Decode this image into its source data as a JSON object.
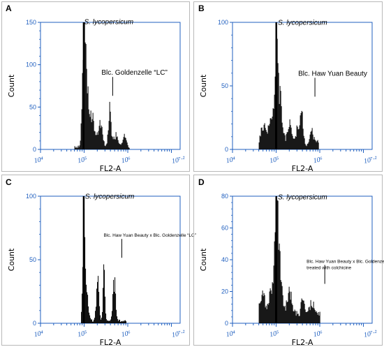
{
  "chart_data": [
    {
      "panel": "A",
      "type": "bar",
      "xscale": "log",
      "xlabel": "FL2-A",
      "ylabel": "Count",
      "xlim": [
        10000,
        15848931
      ],
      "ylim": [
        0,
        150
      ],
      "yticks": [
        "0",
        "50",
        "100",
        "150"
      ],
      "xticks": [
        {
          "v": 10000,
          "label": "10⁴"
        },
        {
          "v": 100000,
          "label": "10⁵"
        },
        {
          "v": 1000000,
          "label": "10⁶"
        },
        {
          "v": 15848931,
          "label": "10⁷·²"
        }
      ],
      "annotations": [
        {
          "text": "S. lycopersicum",
          "italic": true,
          "x": 100000,
          "y": 148,
          "size": 10
        },
        {
          "text": "Blc. Goldenzelle “LC”",
          "italic": false,
          "x": 250000,
          "y": 88,
          "size": 10
        }
      ],
      "peaks": [
        {
          "x": 97000,
          "h": 150,
          "w": 0.035
        },
        {
          "x": 112000,
          "h": 75,
          "w": 0.05
        },
        {
          "x": 150000,
          "h": 42,
          "w": 0.06
        },
        {
          "x": 230000,
          "h": 35,
          "w": 0.05
        },
        {
          "x": 380000,
          "h": 60,
          "w": 0.03
        },
        {
          "x": 520000,
          "h": 18,
          "w": 0.05
        },
        {
          "x": 820000,
          "h": 16,
          "w": 0.04
        }
      ],
      "xrange": [
        60000,
        1100000
      ],
      "floor": 3
    },
    {
      "panel": "B",
      "type": "bar",
      "xscale": "log",
      "xlabel": "FL2-A",
      "ylabel": "Count",
      "xlim": [
        10000,
        15848931
      ],
      "ylim": [
        0,
        100
      ],
      "yticks": [
        "0",
        "50",
        "100"
      ],
      "xticks": [
        {
          "v": 10000,
          "label": "10⁴"
        },
        {
          "v": 100000,
          "label": "10⁵"
        },
        {
          "v": 1000000,
          "label": "10⁶"
        },
        {
          "v": 15848931,
          "label": "10⁷·²"
        }
      ],
      "annotations": [
        {
          "text": "S. lycopersicum",
          "italic": true,
          "x": 110000,
          "y": 98,
          "size": 10
        },
        {
          "text": "Blc. Haw Yuan Beauty",
          "italic": false,
          "x": 320000,
          "y": 58,
          "size": 10
        }
      ],
      "peaks": [
        {
          "x": 50000,
          "h": 20,
          "w": 0.06
        },
        {
          "x": 78000,
          "h": 28,
          "w": 0.06
        },
        {
          "x": 100000,
          "h": 100,
          "w": 0.035
        },
        {
          "x": 120000,
          "h": 45,
          "w": 0.05
        },
        {
          "x": 200000,
          "h": 22,
          "w": 0.05
        },
        {
          "x": 310000,
          "h": 20,
          "w": 0.04
        },
        {
          "x": 380000,
          "h": 30,
          "w": 0.03
        },
        {
          "x": 640000,
          "h": 14,
          "w": 0.04
        },
        {
          "x": 820000,
          "h": 4,
          "w": 0.04
        }
      ],
      "xrange": [
        40000,
        950000
      ],
      "floor": 4
    },
    {
      "panel": "C",
      "type": "bar",
      "xscale": "log",
      "xlabel": "FL2-A",
      "ylabel": "Count",
      "xlim": [
        10000,
        15848931
      ],
      "ylim": [
        0,
        100
      ],
      "yticks": [
        "0",
        "50",
        "100"
      ],
      "xticks": [
        {
          "v": 10000,
          "label": "10⁴"
        },
        {
          "v": 100000,
          "label": "10⁵"
        },
        {
          "v": 1000000,
          "label": "10⁶"
        },
        {
          "v": 15848931,
          "label": "10⁷·²"
        }
      ],
      "annotations": [
        {
          "text": "S. lycopersicum",
          "italic": true,
          "x": 105000,
          "y": 98,
          "size": 10
        },
        {
          "text": "Blc. Haw Yuan Beauty x Blc. Goldenzelle “LC”",
          "italic": false,
          "x": 280000,
          "y": 68,
          "size": 6.5
        }
      ],
      "peaks": [
        {
          "x": 97000,
          "h": 100,
          "w": 0.025
        },
        {
          "x": 112000,
          "h": 30,
          "w": 0.04
        },
        {
          "x": 200000,
          "h": 40,
          "w": 0.03
        },
        {
          "x": 280000,
          "h": 50,
          "w": 0.02
        },
        {
          "x": 480000,
          "h": 40,
          "w": 0.03
        },
        {
          "x": 55000,
          "h": 14,
          "w": 0.01
        }
      ],
      "xrange": [
        85000,
        900000
      ],
      "floor": 2
    },
    {
      "panel": "D",
      "type": "bar",
      "xscale": "log",
      "xlabel": "FL2-A",
      "ylabel": "Count",
      "xlim": [
        10000,
        15848931
      ],
      "ylim": [
        0,
        80
      ],
      "yticks": [
        "0",
        "20",
        "40",
        "60",
        "80"
      ],
      "xticks": [
        {
          "v": 10000,
          "label": "10⁴"
        },
        {
          "v": 100000,
          "label": "10⁵"
        },
        {
          "v": 1000000,
          "label": "10⁶"
        },
        {
          "v": 15848931,
          "label": "10⁷·²"
        }
      ],
      "annotations": [
        {
          "text": "S. lycopersicum",
          "italic": true,
          "x": 110000,
          "y": 78,
          "size": 10
        },
        {
          "text": "Blc. Haw Yuan Beauty x Blc. Goldenzelle “LC”",
          "italic": false,
          "x": 500000,
          "y": 38,
          "size": 6.5
        },
        {
          "text": "treated with colchicine",
          "italic": false,
          "x": 500000,
          "y": 34,
          "size": 6.5
        }
      ],
      "peaks": [
        {
          "x": 48000,
          "h": 18,
          "w": 0.06
        },
        {
          "x": 80000,
          "h": 25,
          "w": 0.06
        },
        {
          "x": 100000,
          "h": 80,
          "w": 0.035
        },
        {
          "x": 118000,
          "h": 40,
          "w": 0.05
        },
        {
          "x": 200000,
          "h": 16,
          "w": 0.06
        },
        {
          "x": 400000,
          "h": 15,
          "w": 0.04
        },
        {
          "x": 640000,
          "h": 10,
          "w": 0.05
        }
      ],
      "xrange": [
        40000,
        1000000
      ],
      "floor": 5
    }
  ]
}
